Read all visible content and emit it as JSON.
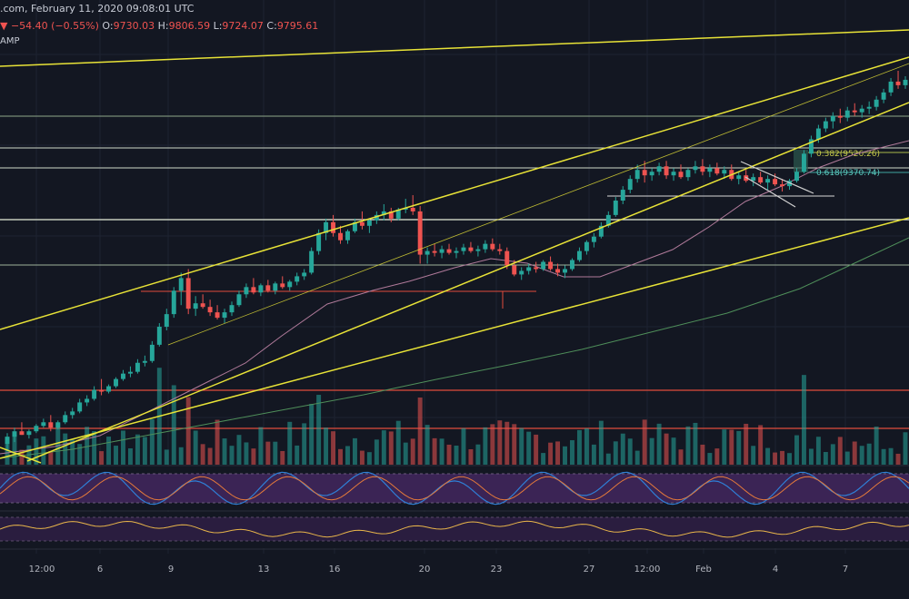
{
  "header": {
    "source_title": ".com, February 11, 2020 09:08:01 UTC",
    "change_symbol": "▼",
    "change": "−54.40 (−0.55%)",
    "open_label": "O:",
    "open": "9730.03",
    "high_label": "H:",
    "high": "9806.59",
    "low_label": "L:",
    "low": "9724.07",
    "close_label": "C:",
    "close": "9795.61",
    "indicator_fragment": "AMP"
  },
  "colors": {
    "background": "#131722",
    "bull": "#26a69a",
    "bear": "#ef5350",
    "trendline": "#e8e337",
    "support_line": "#c8d6c0",
    "resistance_line": "#e04b3c",
    "ma_fast": "#b07a9a",
    "ma_slow": "#4f8f5a",
    "stoch_bg": "#3b2455",
    "rsi_bg": "#2a1d3f"
  },
  "chart_data": {
    "type": "candlestick",
    "x_tick_labels": [
      "12:00",
      "6",
      "9",
      "13",
      "16",
      "20",
      "23",
      "27",
      "12:00",
      "Feb",
      "4",
      "7"
    ],
    "fib_levels": [
      {
        "label": "0.382(9526.26)",
        "value": 9526.26
      },
      {
        "label": "0.618(9370.74)",
        "value": 9370.74
      }
    ],
    "candles": [
      [
        8330,
        8390,
        8290,
        8370
      ],
      [
        8370,
        8420,
        8340,
        8400
      ],
      [
        8400,
        8450,
        8380,
        8380
      ],
      [
        8380,
        8410,
        8360,
        8400
      ],
      [
        8400,
        8440,
        8390,
        8430
      ],
      [
        8430,
        8470,
        8420,
        8450
      ],
      [
        8450,
        8490,
        8400,
        8420
      ],
      [
        8420,
        8460,
        8410,
        8450
      ],
      [
        8450,
        8510,
        8440,
        8490
      ],
      [
        8490,
        8530,
        8470,
        8510
      ],
      [
        8510,
        8580,
        8500,
        8560
      ],
      [
        8560,
        8600,
        8540,
        8580
      ],
      [
        8580,
        8650,
        8570,
        8630
      ],
      [
        8630,
        8690,
        8600,
        8620
      ],
      [
        8620,
        8660,
        8610,
        8650
      ],
      [
        8650,
        8700,
        8640,
        8690
      ],
      [
        8690,
        8740,
        8680,
        8720
      ],
      [
        8720,
        8760,
        8700,
        8730
      ],
      [
        8730,
        8800,
        8720,
        8780
      ],
      [
        8780,
        8820,
        8760,
        8790
      ],
      [
        8790,
        8900,
        8780,
        8880
      ],
      [
        8880,
        9000,
        8870,
        8980
      ],
      [
        8980,
        9080,
        8960,
        9050
      ],
      [
        9050,
        9200,
        9030,
        9180
      ],
      [
        9180,
        9280,
        9100,
        9250
      ],
      [
        9250,
        9300,
        9050,
        9080
      ],
      [
        9080,
        9150,
        9040,
        9110
      ],
      [
        9110,
        9160,
        9080,
        9090
      ],
      [
        9090,
        9130,
        9040,
        9060
      ],
      [
        9060,
        9100,
        9020,
        9030
      ],
      [
        9030,
        9080,
        9000,
        9060
      ],
      [
        9060,
        9120,
        9040,
        9100
      ],
      [
        9100,
        9180,
        9090,
        9160
      ],
      [
        9160,
        9220,
        9140,
        9200
      ],
      [
        9200,
        9250,
        9160,
        9170
      ],
      [
        9170,
        9220,
        9150,
        9210
      ],
      [
        9210,
        9240,
        9170,
        9180
      ],
      [
        9180,
        9230,
        9160,
        9220
      ],
      [
        9220,
        9260,
        9190,
        9200
      ],
      [
        9200,
        9240,
        9180,
        9230
      ],
      [
        9230,
        9280,
        9210,
        9260
      ],
      [
        9260,
        9300,
        9240,
        9280
      ],
      [
        9280,
        9420,
        9270,
        9400
      ],
      [
        9400,
        9520,
        9380,
        9500
      ],
      [
        9500,
        9580,
        9460,
        9560
      ],
      [
        9560,
        9600,
        9480,
        9500
      ],
      [
        9500,
        9540,
        9440,
        9460
      ],
      [
        9460,
        9520,
        9440,
        9510
      ],
      [
        9510,
        9580,
        9500,
        9560
      ],
      [
        9560,
        9620,
        9520,
        9540
      ],
      [
        9540,
        9580,
        9500,
        9570
      ],
      [
        9570,
        9620,
        9550,
        9600
      ],
      [
        9600,
        9660,
        9570,
        9620
      ],
      [
        9620,
        9640,
        9560,
        9580
      ],
      [
        9580,
        9640,
        9570,
        9630
      ],
      [
        9630,
        9690,
        9610,
        9640
      ],
      [
        9640,
        9710,
        9600,
        9620
      ],
      [
        9620,
        9650,
        9330,
        9380
      ],
      [
        9380,
        9420,
        9330,
        9400
      ],
      [
        9400,
        9440,
        9370,
        9390
      ],
      [
        9390,
        9430,
        9360,
        9410
      ],
      [
        9410,
        9440,
        9380,
        9390
      ],
      [
        9390,
        9420,
        9360,
        9400
      ],
      [
        9400,
        9440,
        9380,
        9420
      ],
      [
        9420,
        9450,
        9390,
        9400
      ],
      [
        9400,
        9430,
        9370,
        9410
      ],
      [
        9410,
        9460,
        9390,
        9440
      ],
      [
        9440,
        9470,
        9400,
        9410
      ],
      [
        9410,
        9440,
        9380,
        9400
      ],
      [
        9400,
        9420,
        9300,
        9320
      ],
      [
        9320,
        9350,
        9260,
        9270
      ],
      [
        9270,
        9310,
        9240,
        9290
      ],
      [
        9290,
        9330,
        9270,
        9310
      ],
      [
        9310,
        9340,
        9280,
        9300
      ],
      [
        9300,
        9350,
        9290,
        9340
      ],
      [
        9340,
        9370,
        9290,
        9300
      ],
      [
        9300,
        9330,
        9260,
        9280
      ],
      [
        9280,
        9320,
        9250,
        9300
      ],
      [
        9300,
        9360,
        9290,
        9350
      ],
      [
        9350,
        9420,
        9340,
        9400
      ],
      [
        9400,
        9460,
        9380,
        9450
      ],
      [
        9450,
        9500,
        9420,
        9480
      ],
      [
        9480,
        9560,
        9470,
        9540
      ],
      [
        9540,
        9620,
        9530,
        9600
      ],
      [
        9600,
        9700,
        9590,
        9680
      ],
      [
        9680,
        9760,
        9660,
        9740
      ],
      [
        9740,
        9820,
        9720,
        9800
      ],
      [
        9800,
        9880,
        9780,
        9850
      ],
      [
        9850,
        9900,
        9780,
        9820
      ],
      [
        9820,
        9860,
        9790,
        9840
      ],
      [
        9840,
        9890,
        9820,
        9870
      ],
      [
        9870,
        9900,
        9800,
        9820
      ],
      [
        9820,
        9860,
        9790,
        9840
      ],
      [
        9840,
        9880,
        9800,
        9810
      ],
      [
        9810,
        9860,
        9790,
        9850
      ],
      [
        9850,
        9900,
        9830,
        9870
      ],
      [
        9870,
        9910,
        9820,
        9840
      ],
      [
        9840,
        9880,
        9810,
        9860
      ],
      [
        9860,
        9890,
        9820,
        9830
      ],
      [
        9830,
        9870,
        9800,
        9850
      ],
      [
        9850,
        9880,
        9790,
        9800
      ],
      [
        9800,
        9840,
        9770,
        9820
      ],
      [
        9820,
        9850,
        9780,
        9790
      ],
      [
        9790,
        9830,
        9760,
        9810
      ],
      [
        9810,
        9840,
        9770,
        9780
      ],
      [
        9780,
        9820,
        9740,
        9800
      ],
      [
        9800,
        9830,
        9760,
        9770
      ],
      [
        9770,
        9800,
        9730,
        9760
      ],
      [
        9760,
        9800,
        9740,
        9790
      ],
      [
        9790,
        9860,
        9780,
        9840
      ],
      [
        9840,
        9960,
        9830,
        9940
      ],
      [
        9940,
        10040,
        9920,
        10020
      ],
      [
        10020,
        10100,
        10000,
        10080
      ],
      [
        10080,
        10140,
        10060,
        10120
      ],
      [
        10120,
        10170,
        10080,
        10150
      ],
      [
        10150,
        10190,
        10110,
        10140
      ],
      [
        10140,
        10200,
        10120,
        10180
      ],
      [
        10180,
        10220,
        10150,
        10170
      ],
      [
        10170,
        10210,
        10140,
        10190
      ],
      [
        10190,
        10230,
        10160,
        10200
      ],
      [
        10200,
        10260,
        10180,
        10240
      ],
      [
        10240,
        10300,
        10220,
        10280
      ],
      [
        10280,
        10360,
        10260,
        10340
      ],
      [
        10340,
        10400,
        10300,
        10320
      ],
      [
        10320,
        10370,
        10300,
        10350
      ]
    ]
  }
}
